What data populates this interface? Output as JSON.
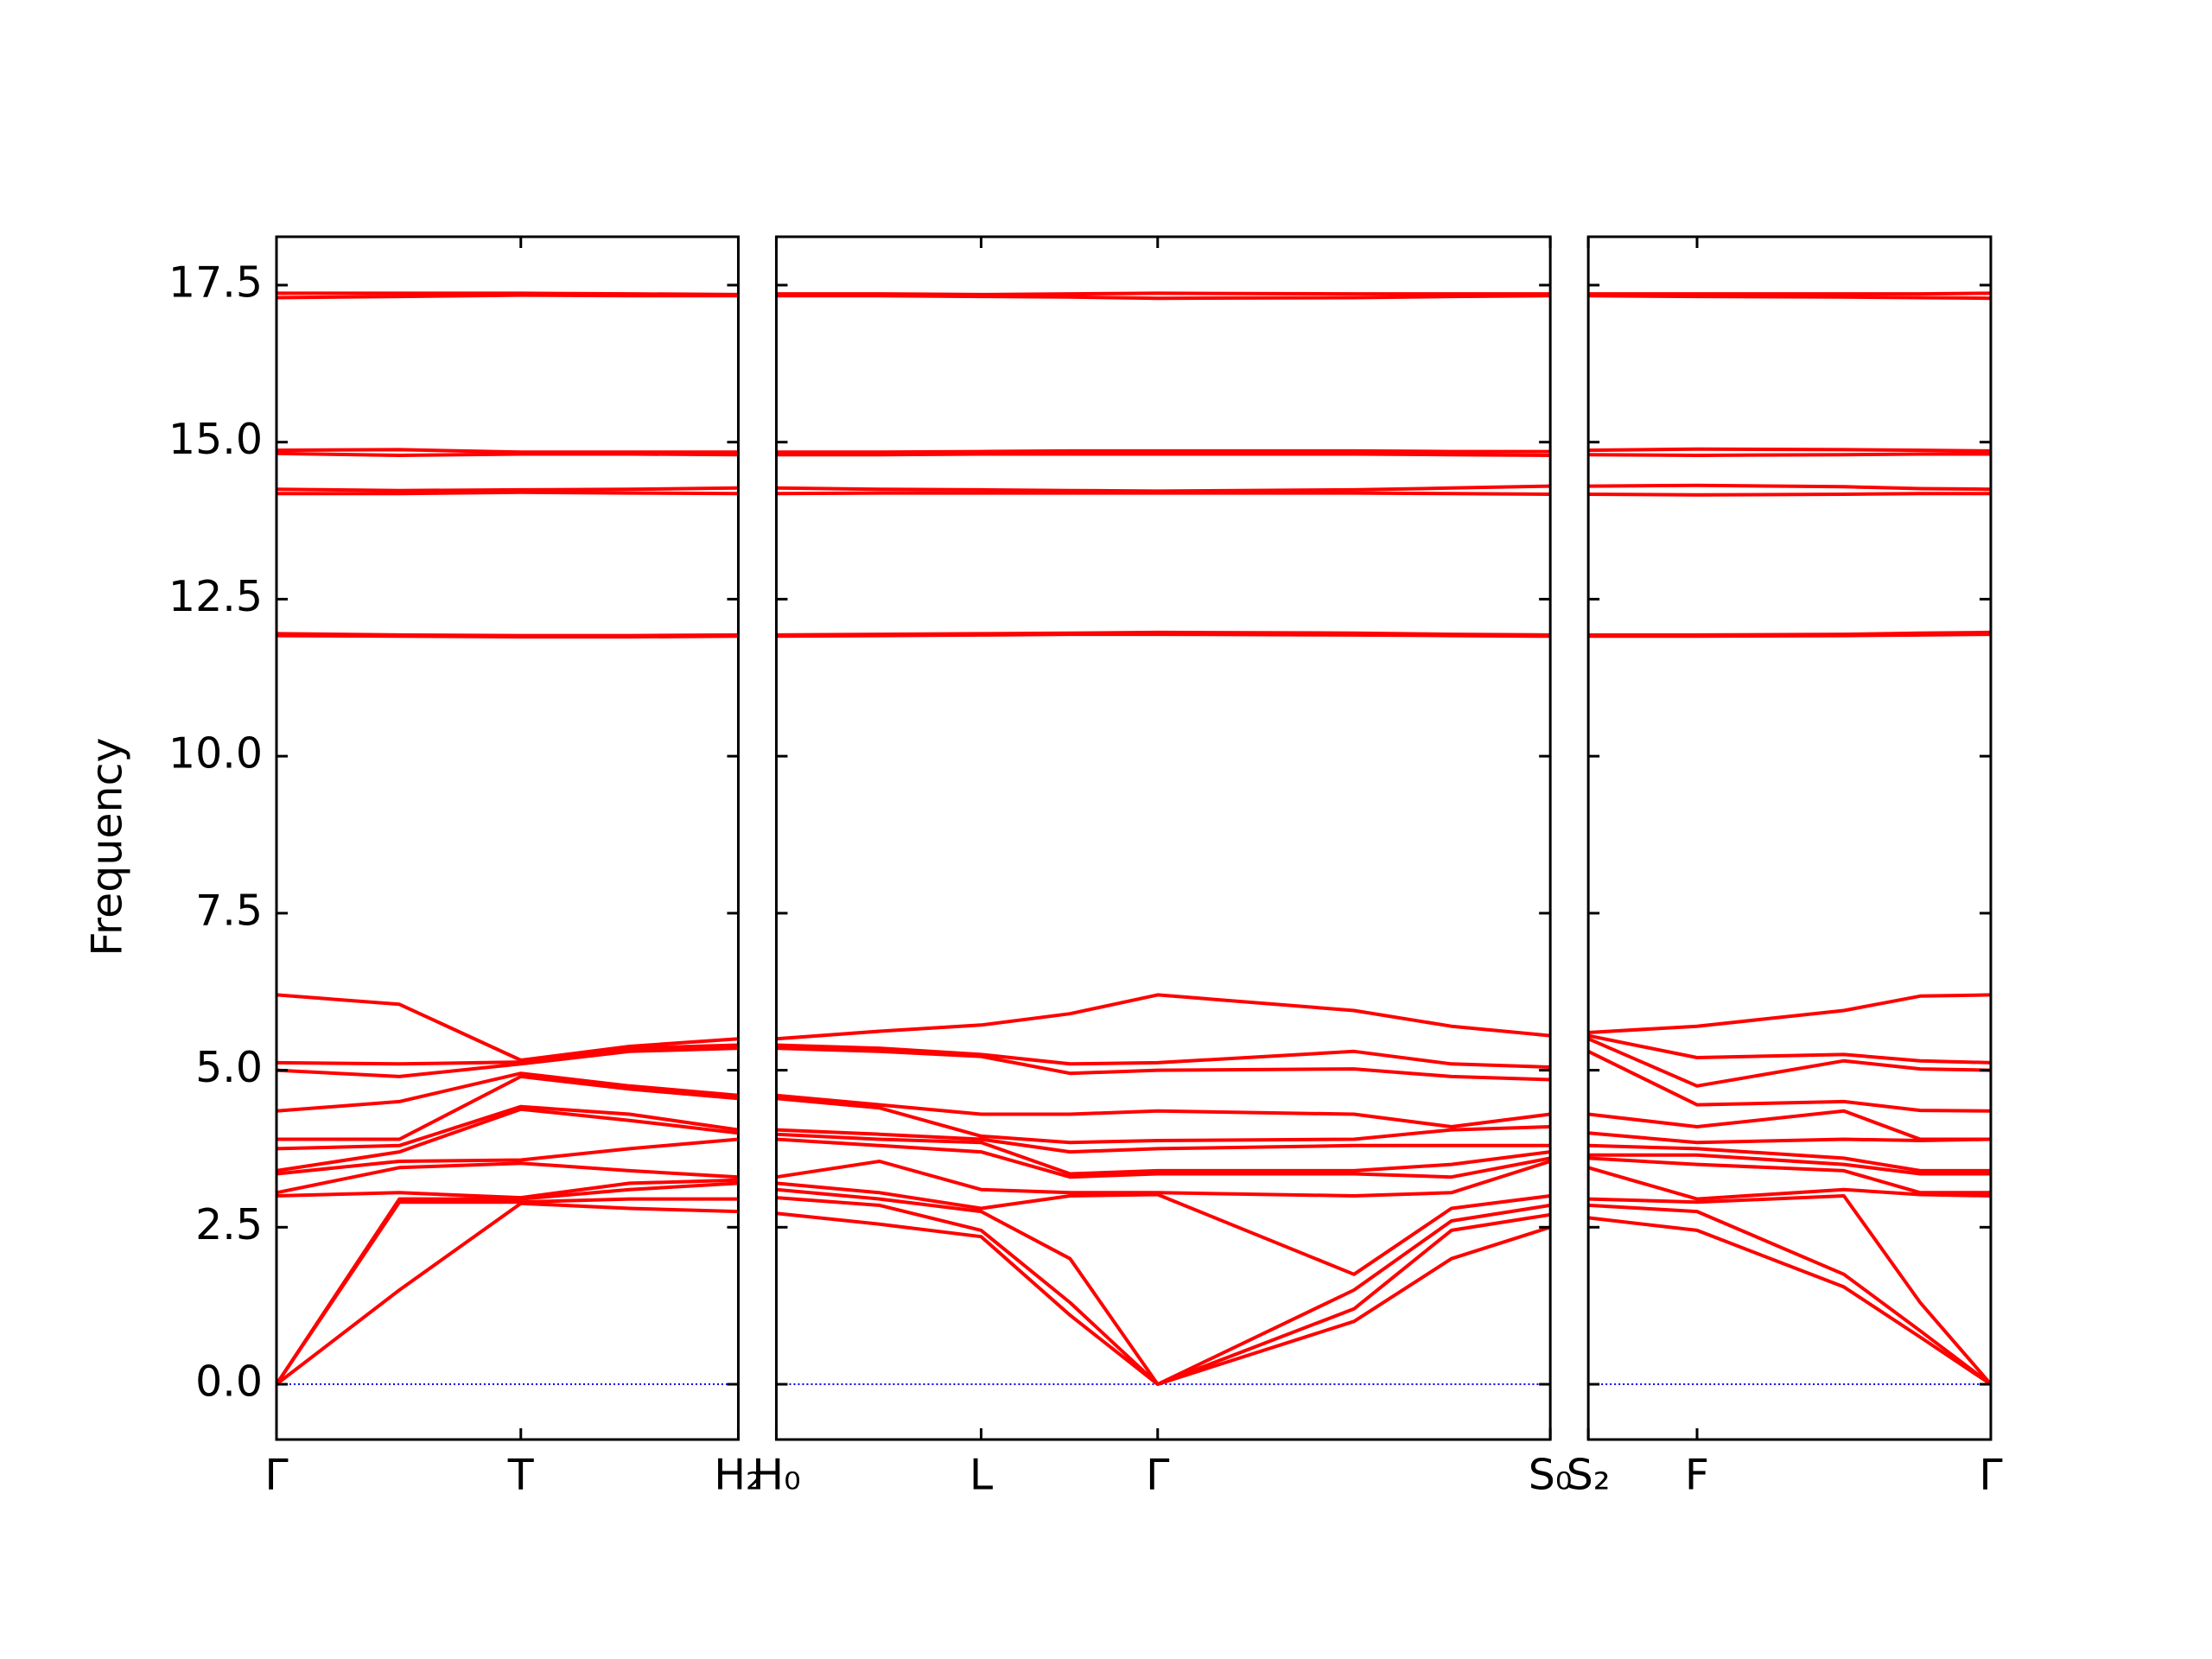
{
  "chart_data": [
    {
      "type": "line",
      "ylabel": "Frequency",
      "color": "#ff0000",
      "hline": 0,
      "hline_color": "#0000ff",
      "xlim": [
        0,
        3.27
      ],
      "xticks": [
        {
          "value": 0,
          "label": "Γ"
        },
        {
          "value": 1.73,
          "label": "T"
        },
        {
          "value": 3.27,
          "label": "H₂"
        }
      ],
      "ylim": [
        -0.88,
        18.27
      ],
      "yticks": [
        {
          "value": 0,
          "label": "0.0"
        },
        2.5,
        {
          "value": 5,
          "label": "5.0"
        },
        7.5,
        {
          "value": 10,
          "label": "10.0"
        },
        12.5,
        {
          "value": 15,
          "label": "15.0"
        },
        17.5
      ],
      "x": [
        0,
        0.87,
        1.73,
        2.5,
        3.27
      ],
      "series": [
        {
          "values": [
            0,
            1.5,
            2.88,
            2.8,
            2.75
          ]
        },
        {
          "values": [
            0,
            2.9,
            2.9,
            2.95,
            2.95
          ]
        },
        {
          "values": [
            0,
            2.95,
            2.95,
            3.1,
            3.2
          ]
        },
        {
          "values": [
            3.0,
            3.05,
            2.97,
            3.2,
            3.25
          ]
        },
        {
          "values": [
            3.05,
            3.45,
            3.52,
            3.4,
            3.3
          ]
        },
        {
          "values": [
            3.35,
            3.55,
            3.57,
            3.75,
            3.9
          ]
        },
        {
          "values": [
            3.4,
            3.7,
            4.38,
            4.2,
            4.0
          ]
        },
        {
          "values": [
            3.75,
            3.8,
            4.42,
            4.3,
            4.05
          ]
        },
        {
          "values": [
            3.9,
            3.9,
            4.9,
            4.7,
            4.55
          ]
        },
        {
          "values": [
            4.35,
            4.5,
            4.95,
            4.75,
            4.6
          ]
        },
        {
          "values": [
            5.0,
            4.9,
            5.1,
            5.3,
            5.35
          ]
        },
        {
          "values": [
            5.12,
            5.1,
            5.13,
            5.35,
            5.4
          ]
        },
        {
          "values": [
            6.2,
            6.05,
            5.16,
            5.38,
            5.5
          ]
        },
        {
          "values": [
            11.95,
            11.93,
            11.92,
            11.92,
            11.93
          ]
        },
        {
          "values": [
            11.92,
            11.91,
            11.9,
            11.9,
            11.91
          ]
        },
        {
          "values": [
            14.25,
            14.23,
            14.24,
            14.25,
            14.27
          ]
        },
        {
          "values": [
            14.18,
            14.18,
            14.2,
            14.19,
            14.18
          ]
        },
        {
          "values": [
            14.87,
            14.88,
            14.84,
            14.84,
            14.84
          ]
        },
        {
          "values": [
            14.82,
            14.79,
            14.81,
            14.81,
            14.8
          ]
        },
        {
          "values": [
            17.37,
            17.37,
            17.37,
            17.36,
            17.35
          ]
        },
        {
          "values": [
            17.3,
            17.32,
            17.34,
            17.33,
            17.33
          ]
        }
      ]
    },
    {
      "type": "line",
      "color": "#ff0000",
      "hline": 0,
      "hline_color": "#0000ff",
      "xlim": [
        3.27,
        8.75
      ],
      "xticks": [
        {
          "value": 3.27,
          "label": "H₀"
        },
        {
          "value": 4.72,
          "label": "L"
        },
        {
          "value": 5.97,
          "label": "Γ"
        },
        {
          "value": 8.75,
          "label": "S₀"
        }
      ],
      "ylim": [
        -0.88,
        18.27
      ],
      "yticks": [
        0,
        2.5,
        5,
        7.5,
        10,
        12.5,
        15,
        17.5
      ],
      "x": [
        3.27,
        4.0,
        4.72,
        5.35,
        5.97,
        7.36,
        8.05,
        8.75
      ],
      "series": [
        {
          "values": [
            2.72,
            2.55,
            2.35,
            1.1,
            0,
            1.0,
            2.0,
            2.5
          ]
        },
        {
          "values": [
            2.97,
            2.85,
            2.45,
            1.3,
            0,
            1.2,
            2.45,
            2.7
          ]
        },
        {
          "values": [
            3.1,
            2.95,
            2.75,
            2.0,
            0,
            1.5,
            2.6,
            2.85
          ]
        },
        {
          "values": [
            3.2,
            3.05,
            2.8,
            3.0,
            3.02,
            1.75,
            2.8,
            3.0
          ]
        },
        {
          "values": [
            3.3,
            3.55,
            3.1,
            3.05,
            3.05,
            3.0,
            3.05,
            3.55
          ]
        },
        {
          "values": [
            3.9,
            3.8,
            3.7,
            3.3,
            3.35,
            3.35,
            3.3,
            3.6
          ]
        },
        {
          "values": [
            3.98,
            3.9,
            3.85,
            3.35,
            3.4,
            3.4,
            3.5,
            3.7
          ]
        },
        {
          "values": [
            4.05,
            3.98,
            3.9,
            3.7,
            3.75,
            3.8,
            3.8,
            3.8
          ]
        },
        {
          "values": [
            4.55,
            4.4,
            3.95,
            3.85,
            3.88,
            3.9,
            4.05,
            4.1
          ]
        },
        {
          "values": [
            4.6,
            4.45,
            4.3,
            4.3,
            4.35,
            4.3,
            4.1,
            4.3
          ]
        },
        {
          "values": [
            5.35,
            5.3,
            5.22,
            4.95,
            5.0,
            5.02,
            4.9,
            4.85
          ]
        },
        {
          "values": [
            5.4,
            5.35,
            5.25,
            5.1,
            5.12,
            5.3,
            5.1,
            5.05
          ]
        },
        {
          "values": [
            5.5,
            5.62,
            5.72,
            5.9,
            6.2,
            5.95,
            5.7,
            5.55
          ]
        },
        {
          "values": [
            11.93,
            11.94,
            11.95,
            11.96,
            11.97,
            11.96,
            11.94,
            11.93
          ]
        },
        {
          "values": [
            11.91,
            11.92,
            11.93,
            11.94,
            11.94,
            11.93,
            11.92,
            11.91
          ]
        },
        {
          "values": [
            14.27,
            14.25,
            14.24,
            14.23,
            14.22,
            14.24,
            14.27,
            14.3
          ]
        },
        {
          "values": [
            14.18,
            14.19,
            14.19,
            14.19,
            14.19,
            14.19,
            14.18,
            14.17
          ]
        },
        {
          "values": [
            14.84,
            14.84,
            14.85,
            14.86,
            14.86,
            14.86,
            14.85,
            14.85
          ]
        },
        {
          "values": [
            14.8,
            14.8,
            14.81,
            14.81,
            14.81,
            14.81,
            14.8,
            14.79
          ]
        },
        {
          "values": [
            17.36,
            17.36,
            17.35,
            17.36,
            17.37,
            17.36,
            17.36,
            17.36
          ]
        },
        {
          "values": [
            17.33,
            17.33,
            17.32,
            17.31,
            17.29,
            17.3,
            17.32,
            17.33
          ]
        }
      ]
    },
    {
      "type": "line",
      "color": "#ff0000",
      "hline": 0,
      "hline_color": "#0000ff",
      "xlim": [
        8.75,
        11.6
      ],
      "xticks": [
        {
          "value": 8.75,
          "label": "S₂"
        },
        {
          "value": 9.52,
          "label": "F"
        },
        {
          "value": 11.6,
          "label": "Γ"
        }
      ],
      "ylim": [
        -0.88,
        18.27
      ],
      "yticks": [
        0,
        2.5,
        5,
        7.5,
        10,
        12.5,
        15,
        17.5
      ],
      "x": [
        8.75,
        9.52,
        10.56,
        11.1,
        11.6
      ],
      "series": [
        {
          "values": [
            2.65,
            2.45,
            1.55,
            0.75,
            0
          ]
        },
        {
          "values": [
            2.85,
            2.75,
            1.75,
            0.85,
            0
          ]
        },
        {
          "values": [
            2.95,
            2.9,
            3.0,
            1.3,
            0
          ]
        },
        {
          "values": [
            3.45,
            2.95,
            3.1,
            3.02,
            3.0
          ]
        },
        {
          "values": [
            3.6,
            3.5,
            3.4,
            3.05,
            3.05
          ]
        },
        {
          "values": [
            3.65,
            3.65,
            3.5,
            3.35,
            3.35
          ]
        },
        {
          "values": [
            3.8,
            3.75,
            3.6,
            3.4,
            3.4
          ]
        },
        {
          "values": [
            4.0,
            3.85,
            3.9,
            3.88,
            3.9
          ]
        },
        {
          "values": [
            4.3,
            4.1,
            4.35,
            3.9,
            3.9
          ]
        },
        {
          "values": [
            5.3,
            4.45,
            4.5,
            4.36,
            4.35
          ]
        },
        {
          "values": [
            5.5,
            4.75,
            5.15,
            5.02,
            5.0
          ]
        },
        {
          "values": [
            5.55,
            5.2,
            5.25,
            5.15,
            5.12
          ]
        },
        {
          "values": [
            5.6,
            5.7,
            5.95,
            6.18,
            6.2
          ]
        },
        {
          "values": [
            11.93,
            11.93,
            11.94,
            11.96,
            11.97
          ]
        },
        {
          "values": [
            11.91,
            11.91,
            11.92,
            11.93,
            11.94
          ]
        },
        {
          "values": [
            14.3,
            14.31,
            14.29,
            14.26,
            14.25
          ]
        },
        {
          "values": [
            14.17,
            14.16,
            14.17,
            14.18,
            14.18
          ]
        },
        {
          "values": [
            14.87,
            14.89,
            14.88,
            14.87,
            14.86
          ]
        },
        {
          "values": [
            14.8,
            14.79,
            14.8,
            14.81,
            14.81
          ]
        },
        {
          "values": [
            17.36,
            17.36,
            17.36,
            17.36,
            17.37
          ]
        },
        {
          "values": [
            17.33,
            17.32,
            17.31,
            17.3,
            17.29
          ]
        }
      ]
    }
  ]
}
